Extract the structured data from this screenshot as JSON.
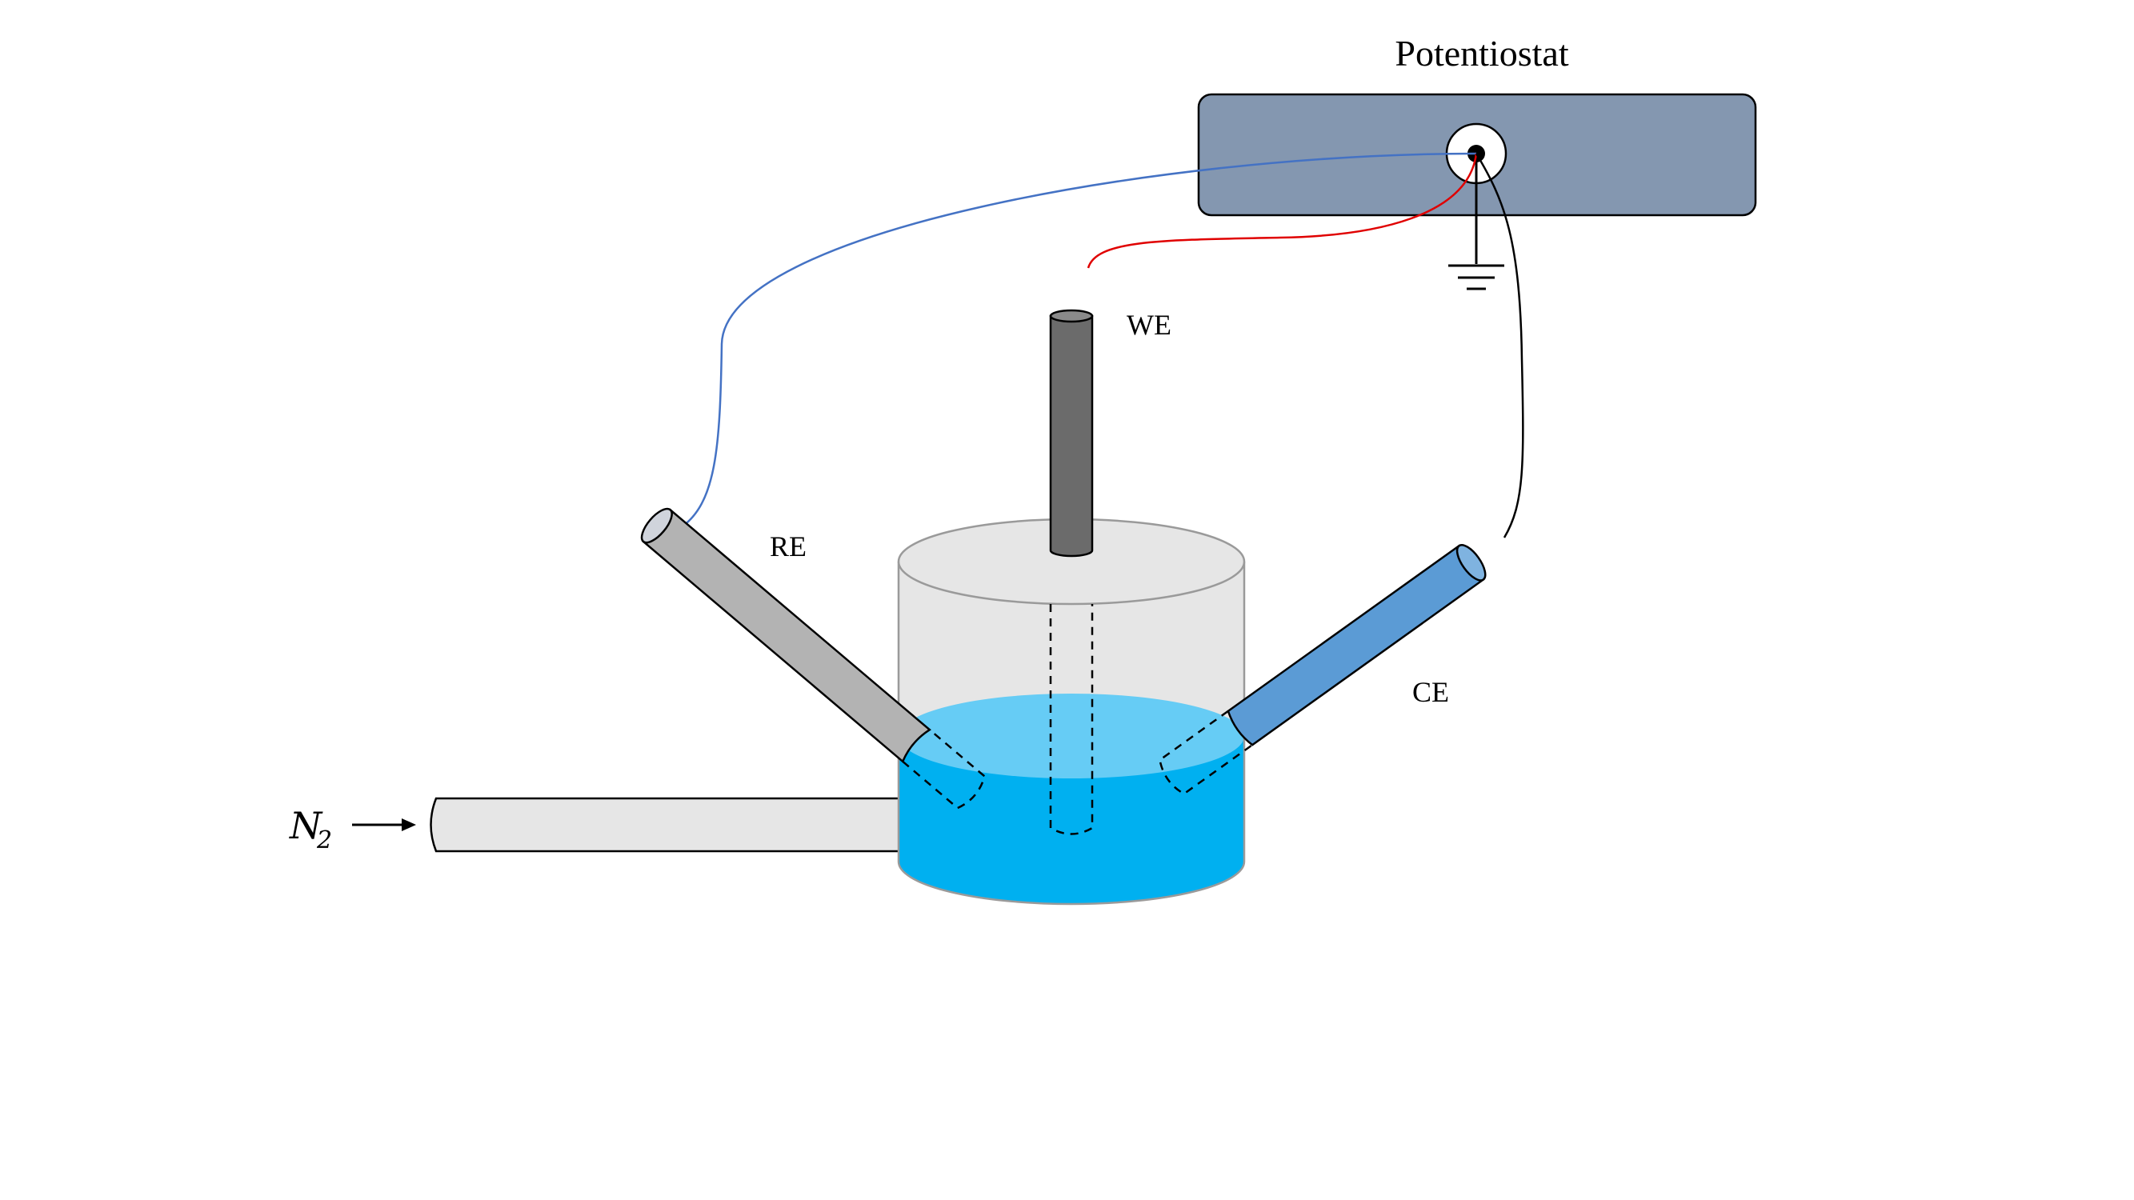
{
  "labels": {
    "potentiostat": "Potentiostat",
    "we": "WE",
    "re": "RE",
    "ce": "CE",
    "gas": "N",
    "gas_subscript": "2"
  },
  "colors": {
    "potentiostat_box": "#8497b0",
    "cell_body": "#e6e6e6",
    "electrolyte_dark": "#00b0f0",
    "electrolyte_light": "#66ccf5",
    "working_electrode": "#6b6b6b",
    "reference_electrode": "#b3b3b3",
    "counter_electrode": "#5b9bd5",
    "we_wire": "#e00000",
    "re_wire": "#4472c4",
    "ce_wire": "#000000",
    "gas_inlet": "#e6e6e6"
  },
  "icons": [
    "terminal-icon",
    "ground-icon",
    "arrow-icon"
  ]
}
